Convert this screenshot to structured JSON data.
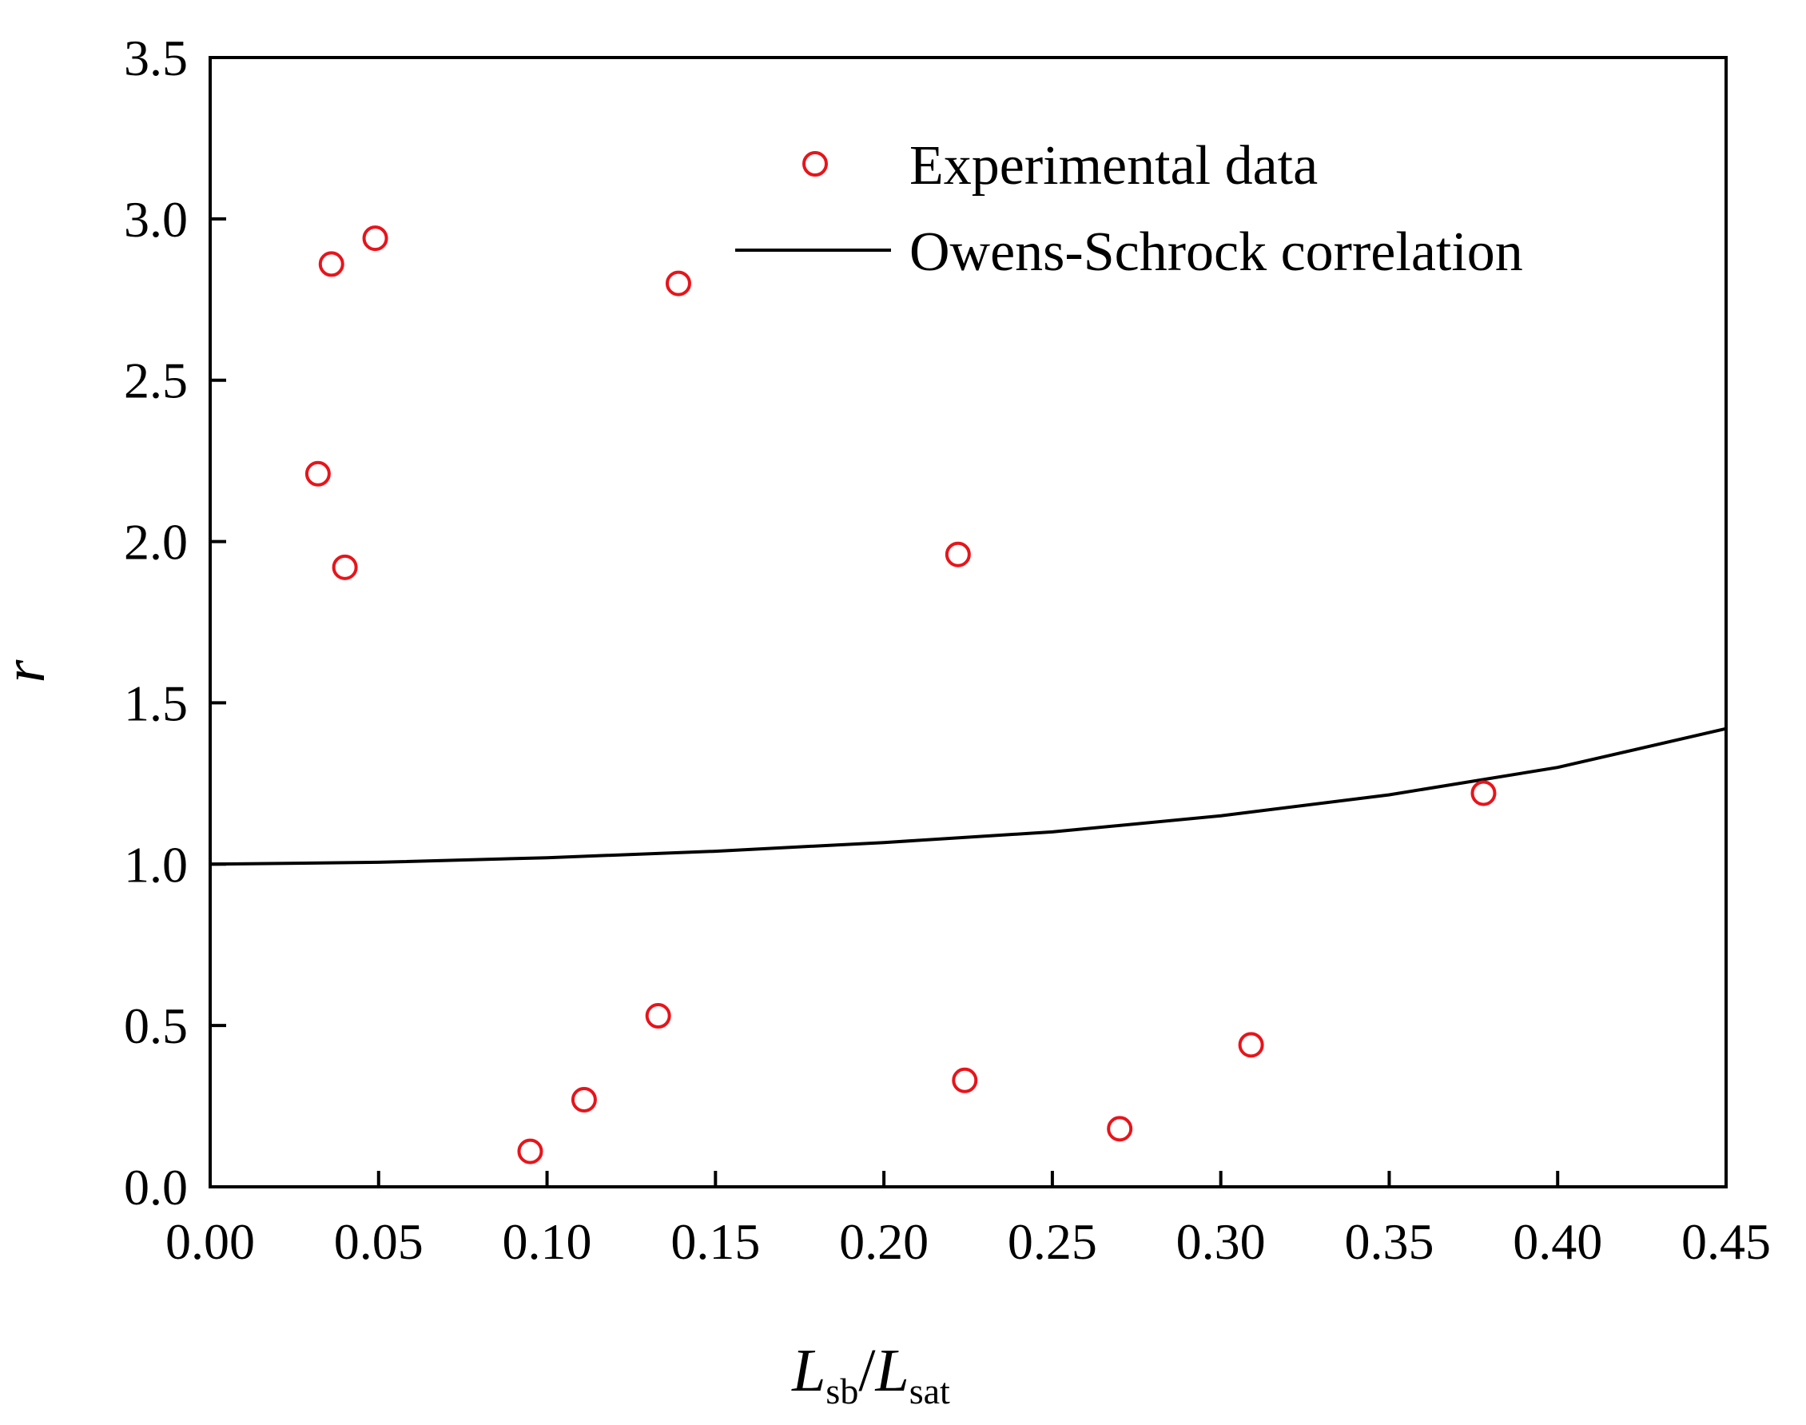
{
  "chart_data": {
    "type": "scatter",
    "title": "",
    "xlabel": {
      "main_left": "L",
      "sub_left": "sb",
      "slash": "/",
      "main_right": "L",
      "sub_right": "sat"
    },
    "ylabel": "r",
    "xlim": [
      0.0,
      0.45
    ],
    "ylim": [
      0.0,
      3.5
    ],
    "x_ticks": [
      0.0,
      0.05,
      0.1,
      0.15,
      0.2,
      0.25,
      0.3,
      0.35,
      0.4,
      0.45
    ],
    "x_tick_labels": [
      "0.00",
      "0.05",
      "0.10",
      "0.15",
      "0.20",
      "0.25",
      "0.30",
      "0.35",
      "0.40",
      "0.45"
    ],
    "y_ticks": [
      0.0,
      0.5,
      1.0,
      1.5,
      2.0,
      2.5,
      3.0,
      3.5
    ],
    "y_tick_labels": [
      "0.0",
      "0.5",
      "1.0",
      "1.5",
      "2.0",
      "2.5",
      "3.0",
      "3.5"
    ],
    "grid": false,
    "legend_position": "top-right",
    "series": [
      {
        "name": "Experimental data",
        "kind": "scatter",
        "marker": "open-circle",
        "color": "#e8141b",
        "points": [
          {
            "x": 0.032,
            "y": 2.21
          },
          {
            "x": 0.036,
            "y": 2.86
          },
          {
            "x": 0.04,
            "y": 1.92
          },
          {
            "x": 0.049,
            "y": 2.94
          },
          {
            "x": 0.095,
            "y": 0.11
          },
          {
            "x": 0.111,
            "y": 0.27
          },
          {
            "x": 0.133,
            "y": 0.53
          },
          {
            "x": 0.139,
            "y": 2.8
          },
          {
            "x": 0.222,
            "y": 1.96
          },
          {
            "x": 0.224,
            "y": 0.33
          },
          {
            "x": 0.27,
            "y": 0.18
          },
          {
            "x": 0.309,
            "y": 0.44
          },
          {
            "x": 0.378,
            "y": 1.22
          }
        ]
      },
      {
        "name": "Owens-Schrock correlation",
        "kind": "line",
        "color": "#000000",
        "points": [
          {
            "x": 0.0,
            "y": 1.0
          },
          {
            "x": 0.05,
            "y": 1.006
          },
          {
            "x": 0.1,
            "y": 1.02
          },
          {
            "x": 0.15,
            "y": 1.04
          },
          {
            "x": 0.2,
            "y": 1.067
          },
          {
            "x": 0.25,
            "y": 1.1
          },
          {
            "x": 0.3,
            "y": 1.15
          },
          {
            "x": 0.35,
            "y": 1.215
          },
          {
            "x": 0.4,
            "y": 1.3
          },
          {
            "x": 0.45,
            "y": 1.42
          }
        ]
      }
    ]
  }
}
